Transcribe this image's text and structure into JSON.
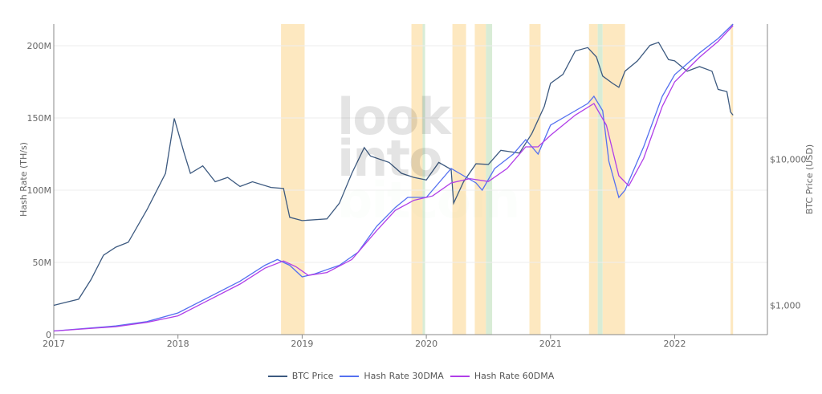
{
  "chart_data": {
    "type": "line",
    "xlabel": "",
    "ylabel_left": "Hash Rate (TH/s)",
    "ylabel_right": "BTC Price (USD)",
    "x_ticks": [
      "2017",
      "2018",
      "2019",
      "2020",
      "2021",
      "2022"
    ],
    "xlim": [
      2017.0,
      2022.7
    ],
    "ylim_left": [
      0,
      215
    ],
    "y_ticks_left": [
      {
        "v": 0,
        "label": "0"
      },
      {
        "v": 50,
        "label": "50M"
      },
      {
        "v": 100,
        "label": "100M"
      },
      {
        "v": 150,
        "label": "150M"
      },
      {
        "v": 200,
        "label": "200M"
      }
    ],
    "ylim_right_log": [
      630,
      84000
    ],
    "y_ticks_right": [
      {
        "v": 1000,
        "label": "$1,000"
      },
      {
        "v": 10000,
        "label": "$10,000"
      }
    ],
    "bands": [
      {
        "from": 2018.83,
        "to": 2019.02,
        "color": "#fde8c0"
      },
      {
        "from": 2019.88,
        "to": 2019.97,
        "color": "#fde8c0"
      },
      {
        "from": 2019.97,
        "to": 2019.99,
        "color": "#d8ecd6"
      },
      {
        "from": 2020.21,
        "to": 2020.32,
        "color": "#fde8c0"
      },
      {
        "from": 2020.39,
        "to": 2020.48,
        "color": "#fde8c0"
      },
      {
        "from": 2020.48,
        "to": 2020.53,
        "color": "#d8ecd6"
      },
      {
        "from": 2020.83,
        "to": 2020.92,
        "color": "#fde8c0"
      },
      {
        "from": 2021.31,
        "to": 2021.38,
        "color": "#fde8c0"
      },
      {
        "from": 2021.38,
        "to": 2021.42,
        "color": "#d8ecd6"
      },
      {
        "from": 2021.42,
        "to": 2021.6,
        "color": "#fde8c0"
      },
      {
        "from": 2022.45,
        "to": 2022.47,
        "color": "#fde8c0"
      }
    ],
    "series": [
      {
        "name": "BTC Price",
        "axis": "right",
        "color": "#3d5a80",
        "x": [
          2017.0,
          2017.1,
          2017.2,
          2017.3,
          2017.4,
          2017.5,
          2017.6,
          2017.75,
          2017.9,
          2017.97,
          2018.05,
          2018.1,
          2018.2,
          2018.3,
          2018.4,
          2018.5,
          2018.6,
          2018.75,
          2018.85,
          2018.9,
          2019.0,
          2019.2,
          2019.3,
          2019.4,
          2019.5,
          2019.55,
          2019.7,
          2019.8,
          2019.9,
          2020.0,
          2020.1,
          2020.2,
          2020.22,
          2020.3,
          2020.4,
          2020.5,
          2020.6,
          2020.75,
          2020.85,
          2020.95,
          2021.0,
          2021.1,
          2021.2,
          2021.3,
          2021.37,
          2021.42,
          2021.5,
          2021.55,
          2021.6,
          2021.7,
          2021.8,
          2021.87,
          2021.95,
          2022.0,
          2022.1,
          2022.2,
          2022.3,
          2022.35,
          2022.42,
          2022.45,
          2022.47
        ],
        "values": [
          1000,
          1050,
          1100,
          1500,
          2200,
          2500,
          2700,
          4500,
          8000,
          19000,
          11000,
          8000,
          9000,
          7000,
          7500,
          6500,
          7000,
          6400,
          6300,
          4000,
          3800,
          3900,
          5000,
          8000,
          12000,
          10500,
          9500,
          8000,
          7500,
          7200,
          9500,
          8500,
          5000,
          7000,
          9300,
          9200,
          11500,
          11000,
          15000,
          23000,
          33000,
          38000,
          55000,
          58000,
          50000,
          37000,
          33000,
          31000,
          40000,
          47000,
          60000,
          63000,
          48000,
          47000,
          40000,
          43000,
          40000,
          30000,
          29000,
          21000,
          20000
        ]
      },
      {
        "name": "Hash Rate 30DMA",
        "axis": "left",
        "color": "#5470f0",
        "x": [
          2017.0,
          2017.5,
          2017.75,
          2018.0,
          2018.25,
          2018.5,
          2018.7,
          2018.8,
          2018.9,
          2019.0,
          2019.1,
          2019.3,
          2019.45,
          2019.6,
          2019.75,
          2019.85,
          2020.0,
          2020.15,
          2020.2,
          2020.3,
          2020.4,
          2020.45,
          2020.55,
          2020.7,
          2020.8,
          2020.9,
          2021.0,
          2021.2,
          2021.3,
          2021.35,
          2021.42,
          2021.47,
          2021.55,
          2021.6,
          2021.75,
          2021.9,
          2022.0,
          2022.2,
          2022.35,
          2022.47
        ],
        "values": [
          2.5,
          6,
          9,
          15,
          26,
          37,
          48,
          52,
          48,
          40,
          42,
          48,
          57,
          75,
          88,
          95,
          95,
          110,
          115,
          110,
          105,
          100,
          115,
          125,
          135,
          125,
          145,
          155,
          160,
          165,
          155,
          120,
          95,
          100,
          130,
          165,
          180,
          195,
          205,
          215
        ]
      },
      {
        "name": "Hash Rate 60DMA",
        "axis": "left",
        "color": "#b03ee8",
        "x": [
          2017.0,
          2017.5,
          2017.75,
          2018.0,
          2018.25,
          2018.5,
          2018.7,
          2018.85,
          2018.95,
          2019.05,
          2019.2,
          2019.4,
          2019.6,
          2019.75,
          2019.9,
          2020.05,
          2020.2,
          2020.35,
          2020.5,
          2020.65,
          2020.8,
          2020.9,
          2021.0,
          2021.2,
          2021.35,
          2021.45,
          2021.55,
          2021.63,
          2021.75,
          2021.9,
          2022.0,
          2022.2,
          2022.35,
          2022.47
        ],
        "values": [
          2.5,
          5.5,
          8.5,
          13,
          24,
          35,
          46,
          51,
          47,
          41,
          43,
          52,
          72,
          86,
          93,
          96,
          105,
          108,
          106,
          115,
          130,
          130,
          138,
          152,
          160,
          145,
          110,
          103,
          122,
          158,
          175,
          192,
          203,
          214
        ]
      }
    ]
  },
  "legend": [
    "BTC Price",
    "Hash Rate 30DMA",
    "Hash Rate 60DMA"
  ],
  "watermark": {
    "line1": "look",
    "line2": "into",
    "line3": "bitcoin"
  }
}
